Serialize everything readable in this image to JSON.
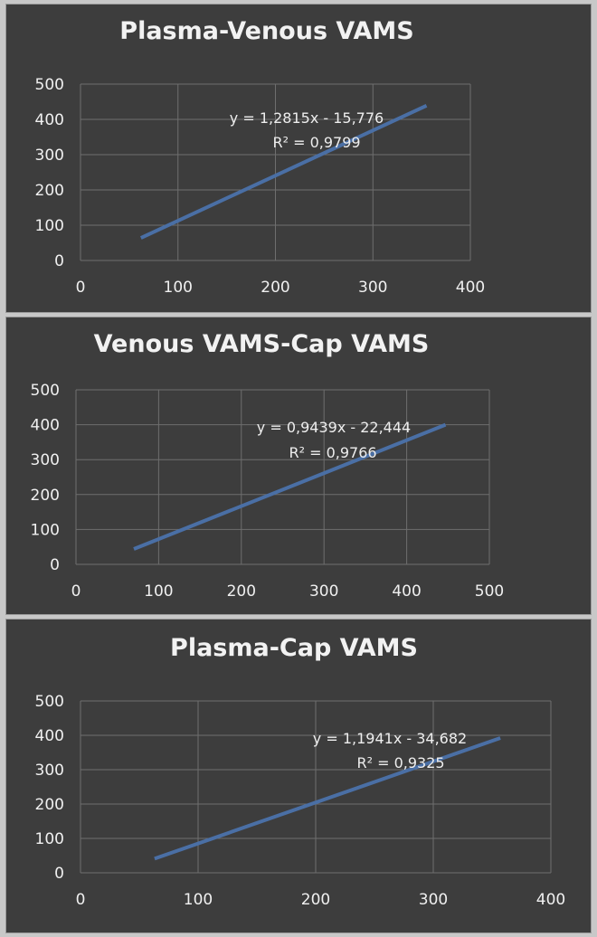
{
  "colors": {
    "panel_bg": "#3d3d3d",
    "grid": "#6e6e6e",
    "line": "#4a6fa5",
    "text": "#f0f0f0"
  },
  "chart_data": [
    {
      "type": "line",
      "title": "Plasma-Venous VAMS",
      "xlabel": "",
      "ylabel": "",
      "xlim": [
        0,
        400
      ],
      "ylim": [
        0,
        500
      ],
      "xticks": [
        0,
        100,
        200,
        300,
        400
      ],
      "yticks": [
        0,
        100,
        200,
        300,
        400,
        500
      ],
      "grid": true,
      "series": [
        {
          "name": "trendline",
          "x": [
            62,
            355
          ],
          "y": [
            64,
            439
          ]
        }
      ],
      "annotation": {
        "equation": "y = 1,2815x - 15,776",
        "r_squared": "R² = 0,9799"
      }
    },
    {
      "type": "line",
      "title": "Venous VAMS-Cap VAMS",
      "xlabel": "",
      "ylabel": "",
      "xlim": [
        0,
        500
      ],
      "ylim": [
        0,
        500
      ],
      "xticks": [
        0,
        100,
        200,
        300,
        400,
        500
      ],
      "yticks": [
        0,
        100,
        200,
        300,
        400,
        500
      ],
      "grid": true,
      "series": [
        {
          "name": "trendline",
          "x": [
            70,
            447
          ],
          "y": [
            44,
            400
          ]
        }
      ],
      "annotation": {
        "equation": "y = 0,9439x - 22,444",
        "r_squared": "R² = 0,9766"
      }
    },
    {
      "type": "line",
      "title": "Plasma-Cap VAMS",
      "xlabel": "",
      "ylabel": "",
      "xlim": [
        0,
        400
      ],
      "ylim": [
        0,
        500
      ],
      "xticks": [
        0,
        100,
        200,
        300,
        400
      ],
      "yticks": [
        0,
        100,
        200,
        300,
        400,
        500
      ],
      "grid": true,
      "series": [
        {
          "name": "trendline",
          "x": [
            63,
            357
          ],
          "y": [
            41,
            392
          ]
        }
      ],
      "annotation": {
        "equation": "y = 1,1941x - 34,682",
        "r_squared": "R² = 0,9325"
      }
    }
  ]
}
